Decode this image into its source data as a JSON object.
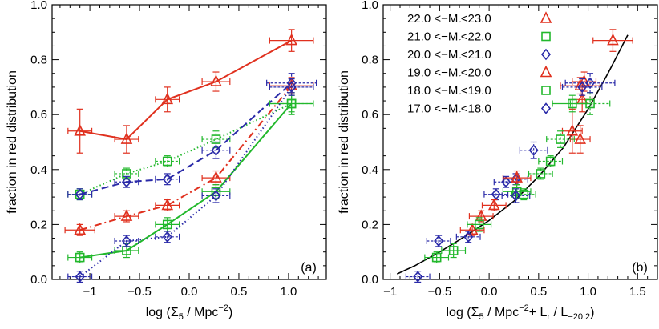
{
  "colors": {
    "red": "#e0301e",
    "green": "#22b82c",
    "blue": "#2a2aa8",
    "black": "#000000"
  },
  "chart_data": [
    {
      "type": "line",
      "panel_label": "(a)",
      "xlabel": "log (Σ",
      "xlabel_sub": "5",
      "xlabel_rest": " / Mpc",
      "xlabel_sup": "−2",
      "xlabel_close": ")",
      "ylabel": "fraction in red distribution",
      "xlim": [
        -1.38,
        1.38
      ],
      "ylim": [
        0.0,
        1.0
      ],
      "x_ticks": [
        -1.0,
        -0.5,
        0.0,
        0.5,
        1.0
      ],
      "x_tick_labels": [
        "−1",
        "−0.5",
        "0.0",
        "0.5",
        "1.0"
      ],
      "y_ticks": [
        0.0,
        0.2,
        0.4,
        0.6,
        0.8,
        1.0
      ],
      "y_tick_labels": [
        "0.0",
        "0.2",
        "0.4",
        "0.6",
        "0.8",
        "1.0"
      ],
      "series": [
        {
          "name": "22.0 < −Mr < 23.0",
          "color": "red",
          "marker": "triangle",
          "line": "solid",
          "x": [
            -1.1,
            -0.63,
            -0.22,
            0.27,
            1.03
          ],
          "y": [
            0.54,
            0.51,
            0.655,
            0.72,
            0.87
          ],
          "xerr": [
            0.12,
            0.12,
            0.12,
            0.14,
            0.22
          ],
          "yerr": [
            0.08,
            0.05,
            0.045,
            0.035,
            0.04
          ]
        },
        {
          "name": "21.0 < −Mr < 22.0",
          "color": "green",
          "marker": "square",
          "line": "dotted",
          "x": [
            -1.1,
            -0.63,
            -0.22,
            0.27,
            1.03
          ],
          "y": [
            0.31,
            0.385,
            0.43,
            0.51,
            0.64
          ],
          "xerr": [
            0.12,
            0.12,
            0.12,
            0.14,
            0.22
          ],
          "yerr": [
            0.02,
            0.02,
            0.02,
            0.03,
            0.04
          ]
        },
        {
          "name": "20.0 < −Mr < 21.0",
          "color": "blue",
          "marker": "diamond",
          "line": "dashed",
          "x": [
            -1.1,
            -0.63,
            -0.22,
            0.27,
            1.03
          ],
          "y": [
            0.31,
            0.355,
            0.365,
            0.47,
            0.715
          ],
          "xerr": [
            0.12,
            0.12,
            0.12,
            0.14,
            0.25
          ],
          "yerr": [
            0.02,
            0.02,
            0.02,
            0.03,
            0.035
          ]
        },
        {
          "name": "19.0 < −Mr < 20.0",
          "color": "red",
          "marker": "triangle",
          "line": "dashdot",
          "x": [
            -1.1,
            -0.63,
            -0.22,
            0.27,
            1.03
          ],
          "y": [
            0.18,
            0.23,
            0.27,
            0.37,
            0.705
          ],
          "xerr": [
            0.15,
            0.12,
            0.12,
            0.14,
            0.22
          ],
          "yerr": [
            0.02,
            0.02,
            0.02,
            0.025,
            0.03
          ]
        },
        {
          "name": "18.0 < −Mr < 19.0",
          "color": "green",
          "marker": "square",
          "line": "solid",
          "x": [
            -1.1,
            -0.63,
            -0.22,
            0.27,
            1.03
          ],
          "y": [
            0.08,
            0.105,
            0.2,
            0.32,
            0.64
          ],
          "xerr": [
            0.12,
            0.12,
            0.12,
            0.14,
            0.22
          ],
          "yerr": [
            0.02,
            0.025,
            0.025,
            0.025,
            0.03
          ]
        },
        {
          "name": "17.0 < −Mr < 18.0",
          "color": "blue",
          "marker": "diamond",
          "line": "dotted",
          "x": [
            -1.1,
            -0.63,
            -0.22,
            0.27,
            1.03
          ],
          "y": [
            0.01,
            0.14,
            0.155,
            0.305,
            0.7
          ],
          "xerr": [
            0.12,
            0.12,
            0.12,
            0.14,
            0.22
          ],
          "yerr": [
            0.02,
            0.02,
            0.02,
            0.025,
            0.03
          ]
        }
      ]
    },
    {
      "type": "scatter",
      "panel_label": "(b)",
      "xlabel": "log (Σ",
      "xlabel_sub": "5",
      "xlabel_rest": " / Mpc",
      "xlabel_sup": "−2",
      "xlabel_plus": "+ L",
      "xlabel_sub2": "r",
      "xlabel_slash": " / L",
      "xlabel_sub3": "−20.2",
      "xlabel_close": ")",
      "ylabel": "fraction in red distribution",
      "xlim": [
        -1.07,
        1.7
      ],
      "ylim": [
        0.0,
        1.0
      ],
      "x_ticks": [
        -1.0,
        -0.5,
        0.0,
        0.5,
        1.0,
        1.5
      ],
      "x_tick_labels": [
        "−1",
        "−0.5",
        "0.0",
        "0.5",
        "1.0",
        "1.5"
      ],
      "y_ticks": [
        0.0,
        0.2,
        0.4,
        0.6,
        0.8,
        1.0
      ],
      "y_tick_labels": [
        "0.0",
        "0.2",
        "0.4",
        "0.6",
        "0.8",
        "1.0"
      ],
      "fit_curve": {
        "color": "black",
        "x": [
          -0.93,
          -0.75,
          -0.5,
          -0.25,
          0.0,
          0.25,
          0.5,
          0.75,
          1.0,
          1.2,
          1.4
        ],
        "y": [
          0.02,
          0.05,
          0.1,
          0.155,
          0.215,
          0.285,
          0.375,
          0.48,
          0.62,
          0.75,
          0.89
        ]
      },
      "series": [
        {
          "name": "22.0 < −Mr < 23.0",
          "color": "red",
          "marker": "triangle",
          "x": [
            0.84,
            0.92,
            0.94,
            0.96,
            1.25
          ],
          "y": [
            0.54,
            0.51,
            0.655,
            0.72,
            0.87
          ],
          "xerr": [
            0.1,
            0.1,
            0.1,
            0.12,
            0.2
          ],
          "yerr": [
            0.08,
            0.05,
            0.045,
            0.035,
            0.04
          ]
        },
        {
          "name": "21.0 < −Mr < 22.0",
          "color": "green",
          "marker": "square",
          "x": [
            0.35,
            0.52,
            0.62,
            0.72,
            1.02
          ],
          "y": [
            0.31,
            0.385,
            0.43,
            0.51,
            0.64
          ],
          "xerr": [
            0.12,
            0.12,
            0.12,
            0.14,
            0.2
          ],
          "yerr": [
            0.02,
            0.02,
            0.02,
            0.03,
            0.04
          ]
        },
        {
          "name": "20.0 < −Mr < 21.0",
          "color": "blue",
          "marker": "diamond",
          "x": [
            0.07,
            0.17,
            0.27,
            0.45,
            1.02
          ],
          "y": [
            0.31,
            0.355,
            0.365,
            0.47,
            0.715
          ],
          "xerr": [
            0.12,
            0.12,
            0.12,
            0.14,
            0.25
          ],
          "yerr": [
            0.02,
            0.02,
            0.02,
            0.03,
            0.035
          ]
        },
        {
          "name": "19.0 < −Mr < 20.0",
          "color": "red",
          "marker": "triangle",
          "x": [
            -0.17,
            -0.08,
            0.05,
            0.28,
            0.92
          ],
          "y": [
            0.18,
            0.23,
            0.27,
            0.37,
            0.705
          ],
          "xerr": [
            0.12,
            0.12,
            0.12,
            0.14,
            0.2
          ],
          "yerr": [
            0.02,
            0.02,
            0.02,
            0.025,
            0.03
          ]
        },
        {
          "name": "18.0 < −Mr < 19.0",
          "color": "green",
          "marker": "square",
          "x": [
            -0.53,
            -0.36,
            -0.1,
            0.28,
            0.84
          ],
          "y": [
            0.08,
            0.105,
            0.2,
            0.32,
            0.64
          ],
          "xerr": [
            0.12,
            0.12,
            0.12,
            0.14,
            0.2
          ],
          "yerr": [
            0.02,
            0.025,
            0.025,
            0.025,
            0.03
          ]
        },
        {
          "name": "17.0 < −Mr < 18.0",
          "color": "blue",
          "marker": "diamond",
          "x": [
            -0.72,
            -0.51,
            -0.21,
            0.27,
            0.94
          ],
          "y": [
            0.01,
            0.14,
            0.155,
            0.305,
            0.7
          ],
          "xerr": [
            0.12,
            0.12,
            0.12,
            0.14,
            0.2
          ],
          "yerr": [
            0.02,
            0.02,
            0.02,
            0.025,
            0.03
          ]
        }
      ],
      "legend": {
        "placement": "top-left",
        "entries": [
          {
            "lo": "22.0",
            "hi": "23.0",
            "color": "red",
            "marker": "triangle"
          },
          {
            "lo": "21.0",
            "hi": "22.0",
            "color": "green",
            "marker": "square"
          },
          {
            "lo": "20.0",
            "hi": "21.0",
            "color": "blue",
            "marker": "diamond"
          },
          {
            "lo": "19.0",
            "hi": "20.0",
            "color": "red",
            "marker": "triangle"
          },
          {
            "lo": "18.0",
            "hi": "19.0",
            "color": "green",
            "marker": "square"
          },
          {
            "lo": "17.0",
            "hi": "18.0",
            "color": "blue",
            "marker": "diamond"
          }
        ],
        "text_mid": "<−M",
        "text_sub": "r",
        "text_lt": "<"
      }
    }
  ]
}
